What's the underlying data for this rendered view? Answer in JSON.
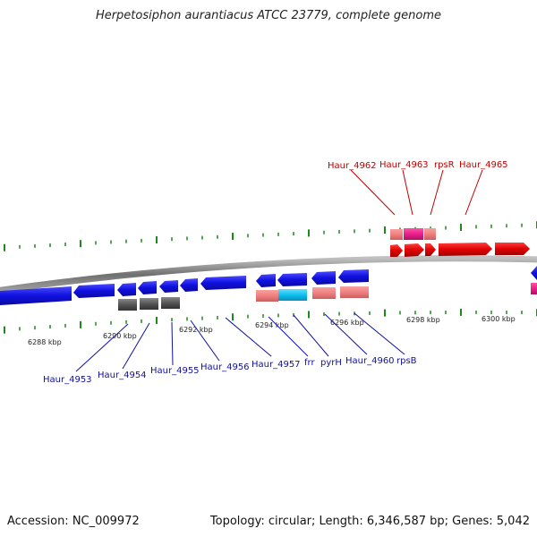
{
  "title": "Herpetosiphon aurantiacus ATCC 23779, complete genome",
  "footer": {
    "accession": "Accession: NC_009972",
    "topology": "Topology: circular; Length: 6,346,587 bp; Genes: 5,042"
  },
  "scale": {
    "unit": "kbp",
    "labels": [
      "6288 kbp",
      "6290 kbp",
      "6292 kbp",
      "6294 kbp",
      "6296 kbp",
      "6298 kbp",
      "6300 kbp"
    ]
  },
  "colors": {
    "backbone": "#7a7a7a",
    "forward_gene": "#e00000",
    "reverse_gene": "#1a1adc",
    "forward_rna_pink": "#f08080",
    "forward_hot_pink": "#e8208a",
    "reverse_pink": "#f08080",
    "cyan": "#10c0f0",
    "gray_box": "#555555",
    "tick": "#1a8a1a",
    "top_label": "#c00000",
    "bottom_label": "#1010a0"
  },
  "top_labels": [
    "Haur_4962",
    "Haur_4963",
    "rpsR",
    "Haur_4965"
  ],
  "bottom_labels": [
    "Haur_4953",
    "Haur_4954",
    "Haur_4955",
    "Haur_4956",
    "Haur_4957",
    "frr",
    "pyrH",
    "Haur_4960",
    "rpsB"
  ]
}
